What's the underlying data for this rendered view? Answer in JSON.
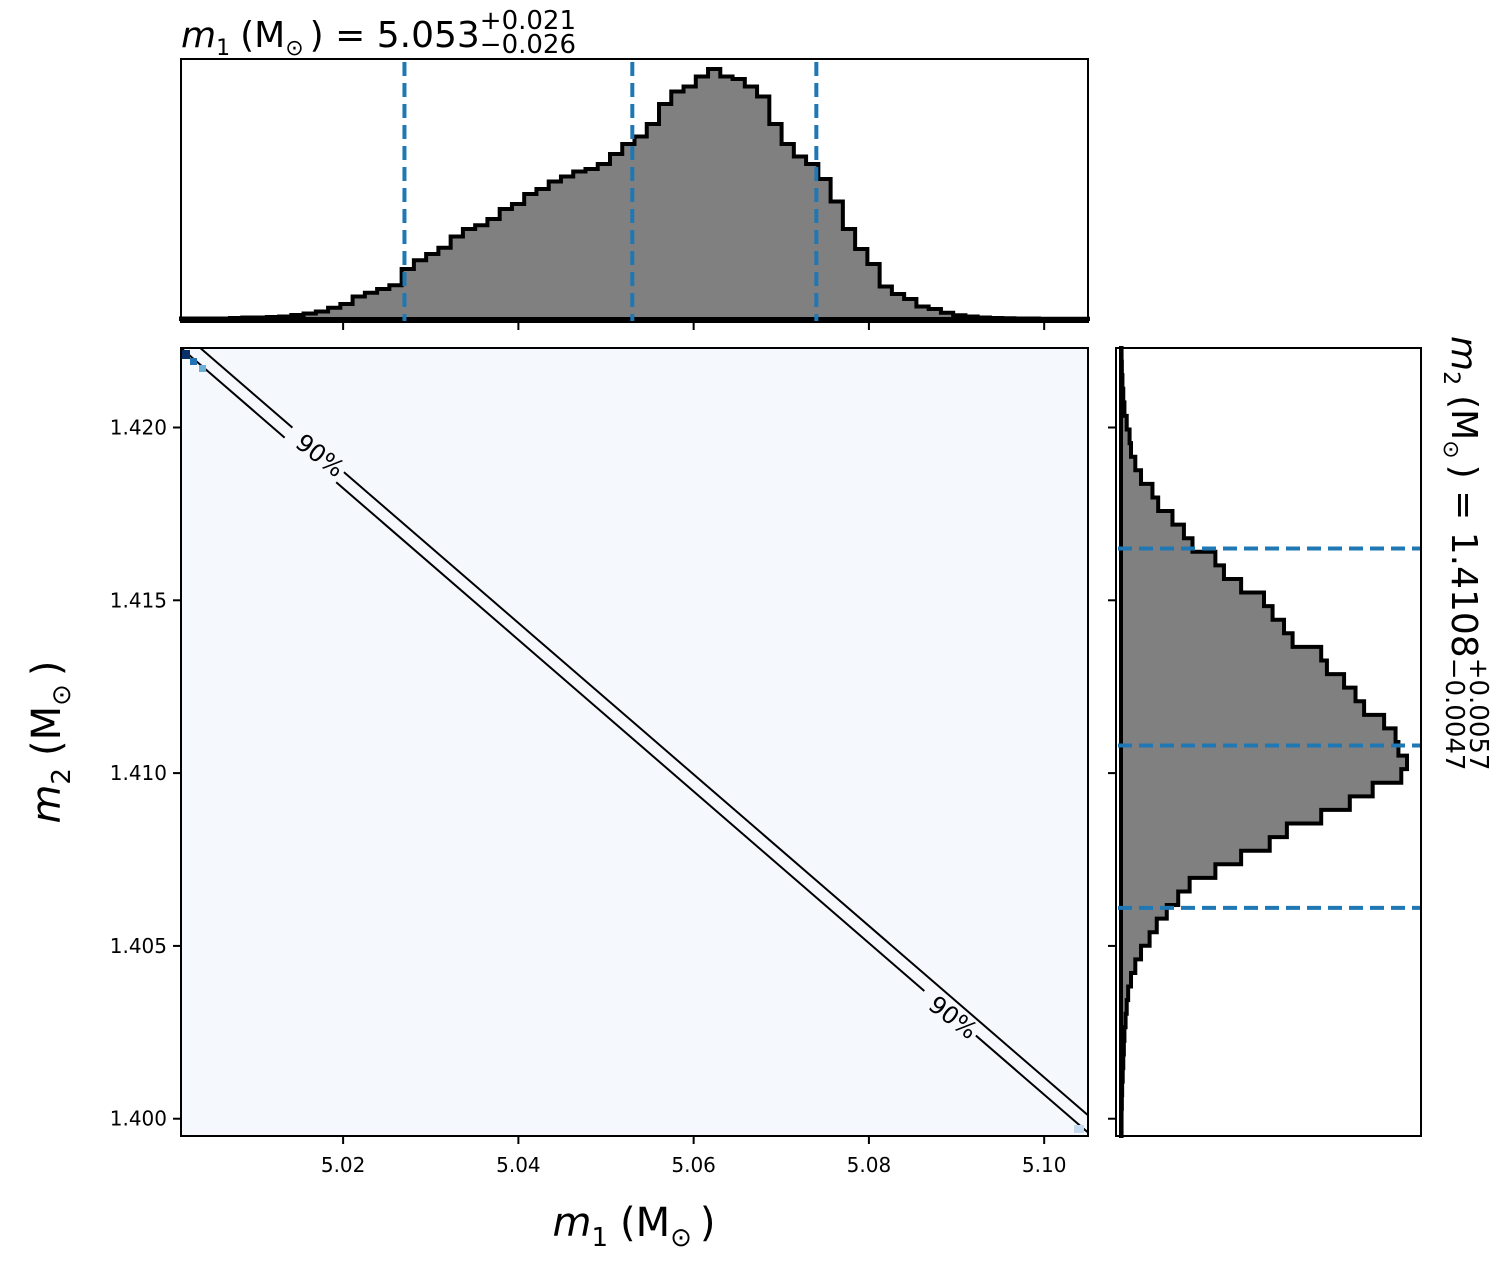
{
  "chart_data": [
    {
      "type": "histogram",
      "panel": "m1-marginal",
      "title": {
        "symbol": "m",
        "sub": "1",
        "unit": "(M",
        "sun": "⊙",
        "close": ")",
        "equals": " = 5.053",
        "plus": "+0.021",
        "minus": "−0.026"
      },
      "xlim": [
        5.0015,
        5.105
      ],
      "quantile_lines": [
        5.027,
        5.053,
        5.074
      ],
      "bin_edges_range": [
        5.0015,
        5.105
      ],
      "values": [
        0.002,
        0.002,
        0.002,
        0.002,
        0.004,
        0.006,
        0.006,
        0.008,
        0.01,
        0.016,
        0.022,
        0.03,
        0.045,
        0.06,
        0.09,
        0.105,
        0.12,
        0.135,
        0.2,
        0.235,
        0.26,
        0.285,
        0.33,
        0.36,
        0.375,
        0.4,
        0.44,
        0.46,
        0.5,
        0.52,
        0.55,
        0.57,
        0.59,
        0.6,
        0.62,
        0.66,
        0.7,
        0.73,
        0.78,
        0.86,
        0.91,
        0.93,
        0.97,
        1.0,
        0.97,
        0.96,
        0.93,
        0.89,
        0.78,
        0.7,
        0.65,
        0.62,
        0.56,
        0.47,
        0.36,
        0.28,
        0.22,
        0.13,
        0.1,
        0.08,
        0.05,
        0.04,
        0.025,
        0.015,
        0.01,
        0.006,
        0.004,
        0.003,
        0.002,
        0.002,
        0.001,
        0.001,
        0.001,
        0.001
      ],
      "color": "#808080",
      "edgecolor": "#000000",
      "line_color": "#1f77b4"
    },
    {
      "type": "heatmap",
      "panel": "joint",
      "xlabel": {
        "symbol": "m",
        "sub": "1",
        "unit": "(M",
        "sun": "⊙",
        "close": ")"
      },
      "ylabel": {
        "symbol": "m",
        "sub": "2",
        "unit": "(M",
        "sun": "⊙",
        "close": ")"
      },
      "xlim": [
        5.0015,
        5.105
      ],
      "ylim": [
        1.3995,
        1.4223
      ],
      "xticks": [
        5.02,
        5.04,
        5.06,
        5.08,
        5.1
      ],
      "xtick_labels": [
        "5.02",
        "5.04",
        "5.06",
        "5.08",
        "5.10"
      ],
      "yticks": [
        1.4,
        1.405,
        1.41,
        1.415,
        1.42
      ],
      "ytick_labels": [
        "1.400",
        "1.405",
        "1.410",
        "1.415",
        "1.420"
      ],
      "contour_label": "90%",
      "contours": [
        {
          "x": [
            5.0015,
            5.105
          ],
          "y": [
            1.4223,
            1.3996
          ]
        },
        {
          "x": [
            5.0037,
            5.105
          ],
          "y": [
            1.4223,
            1.4001
          ]
        }
      ],
      "background": "#f5f9fe",
      "contour_color": "#000000"
    },
    {
      "type": "histogram",
      "panel": "m2-marginal",
      "orientation": "horizontal",
      "title": {
        "symbol": "m",
        "sub": "2",
        "unit": "(M",
        "sun": "⊙",
        "close": ")",
        "equals": " = 1.4108",
        "plus": "+0.0057",
        "minus": "−0.0047"
      },
      "ylim": [
        1.3995,
        1.4223
      ],
      "quantile_lines": [
        1.4061,
        1.4108,
        1.4165
      ],
      "bin_edges_range": [
        1.3995,
        1.4223
      ],
      "values": [
        0.002,
        0.002,
        0.003,
        0.004,
        0.006,
        0.008,
        0.01,
        0.012,
        0.016,
        0.02,
        0.025,
        0.035,
        0.05,
        0.07,
        0.1,
        0.125,
        0.16,
        0.2,
        0.24,
        0.33,
        0.42,
        0.52,
        0.58,
        0.7,
        0.8,
        0.88,
        0.98,
        1.0,
        0.97,
        0.96,
        0.92,
        0.85,
        0.82,
        0.78,
        0.72,
        0.7,
        0.6,
        0.57,
        0.53,
        0.5,
        0.42,
        0.36,
        0.33,
        0.25,
        0.22,
        0.18,
        0.13,
        0.11,
        0.07,
        0.05,
        0.035,
        0.03,
        0.02,
        0.012,
        0.008,
        0.005,
        0.003,
        0.002
      ],
      "color": "#808080",
      "edgecolor": "#000000",
      "line_color": "#1f77b4"
    }
  ]
}
